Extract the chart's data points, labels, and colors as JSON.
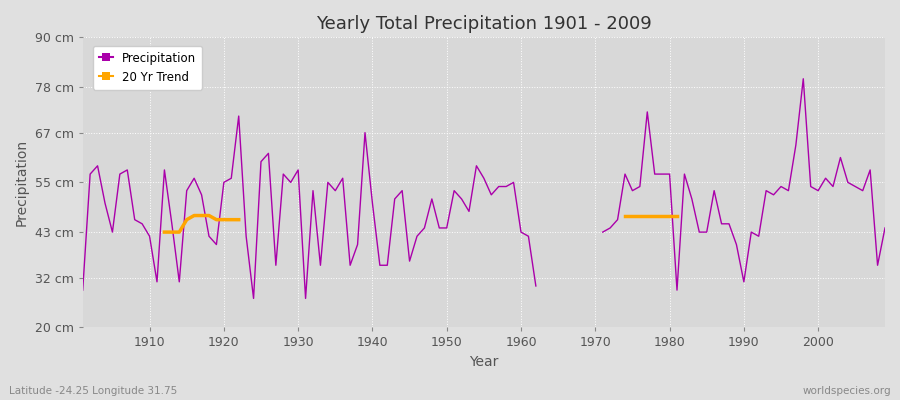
{
  "title": "Yearly Total Precipitation 1901 - 2009",
  "xlabel": "Year",
  "ylabel": "Precipitation",
  "subtitle": "Latitude -24.25 Longitude 31.75",
  "watermark": "worldspecies.org",
  "ylim": [
    20,
    90
  ],
  "yticks": [
    20,
    32,
    43,
    55,
    67,
    78,
    90
  ],
  "ytick_labels": [
    "20 cm",
    "32 cm",
    "43 cm",
    "55 cm",
    "67 cm",
    "78 cm",
    "90 cm"
  ],
  "xlim": [
    1901,
    2009
  ],
  "xticks": [
    1910,
    1920,
    1930,
    1940,
    1950,
    1960,
    1970,
    1980,
    1990,
    2000
  ],
  "precip_color": "#aa00aa",
  "trend_color": "#ffa500",
  "bg_color": "#e0e0e0",
  "plot_bg_color": "#d8d8d8",
  "years_seg1": [
    1901,
    1902,
    1903,
    1904,
    1905,
    1906,
    1907,
    1908,
    1909,
    1910,
    1911,
    1912,
    1913,
    1914,
    1915,
    1916,
    1917,
    1918,
    1919,
    1920,
    1921,
    1922,
    1923,
    1924,
    1925,
    1926,
    1927,
    1928,
    1929,
    1930,
    1931,
    1932,
    1933,
    1934,
    1935,
    1936,
    1937,
    1938,
    1939,
    1940,
    1941,
    1942,
    1943,
    1944,
    1945,
    1946,
    1947,
    1948,
    1949,
    1950,
    1951,
    1952,
    1953,
    1954,
    1955,
    1956,
    1957,
    1958,
    1959,
    1960,
    1961,
    1962
  ],
  "precip_seg1": [
    29,
    57,
    59,
    50,
    43,
    57,
    58,
    46,
    45,
    42,
    31,
    58,
    45,
    31,
    53,
    56,
    52,
    42,
    40,
    55,
    56,
    71,
    42,
    27,
    60,
    62,
    35,
    57,
    55,
    58,
    27,
    53,
    35,
    55,
    53,
    56,
    35,
    40,
    67,
    50,
    35,
    35,
    51,
    53,
    36,
    42,
    44,
    51,
    44,
    44,
    53,
    51,
    48,
    59,
    56,
    52,
    54,
    54,
    55,
    43,
    42,
    30
  ],
  "years_seg2": [
    1971,
    1972,
    1973,
    1974,
    1975,
    1976,
    1977,
    1978,
    1979,
    1980,
    1981,
    1982,
    1983,
    1984,
    1985,
    1986,
    1987,
    1988,
    1989,
    1990,
    1991,
    1992,
    1993,
    1994,
    1995,
    1996,
    1997,
    1998,
    1999,
    2000,
    2001,
    2002,
    2003,
    2004,
    2005,
    2006,
    2007,
    2008,
    2009
  ],
  "precip_seg2": [
    43,
    44,
    46,
    57,
    53,
    54,
    72,
    57,
    57,
    57,
    29,
    57,
    51,
    43,
    43,
    53,
    45,
    45,
    40,
    31,
    43,
    42,
    53,
    52,
    54,
    53,
    64,
    80,
    54,
    53,
    56,
    54,
    61,
    55,
    54,
    53,
    58,
    35,
    44
  ],
  "trend_seg1_years": [
    1912,
    1913,
    1914,
    1915,
    1916,
    1917,
    1918,
    1919,
    1920,
    1921,
    1922
  ],
  "trend_seg1_vals": [
    43,
    43,
    43,
    46,
    47,
    47,
    47,
    46,
    46,
    46,
    46
  ],
  "trend_seg2_years": [
    1974,
    1975,
    1976,
    1977,
    1978,
    1979,
    1980,
    1981
  ],
  "trend_seg2_vals": [
    47,
    47,
    47,
    47,
    47,
    47,
    47,
    47
  ]
}
